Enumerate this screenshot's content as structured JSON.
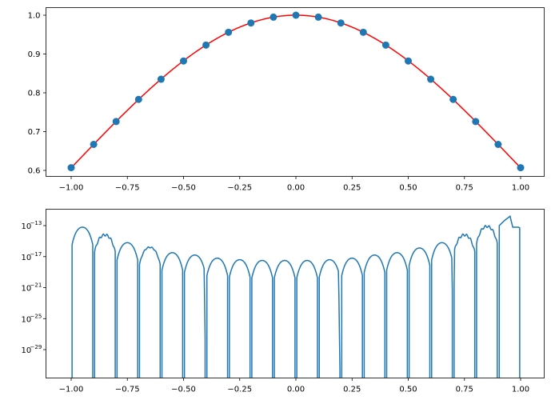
{
  "chart_data": [
    {
      "type": "scatter",
      "xlim": [
        -1.1,
        1.1
      ],
      "ylim": [
        0.5856,
        1.0206
      ],
      "x_ticks": [
        "−1.00",
        "−0.75",
        "−0.50",
        "−0.25",
        "0.00",
        "0.25",
        "0.50",
        "0.75",
        "1.00"
      ],
      "x_tick_values": [
        -1,
        -0.75,
        -0.5,
        -0.25,
        0,
        0.25,
        0.5,
        0.75,
        1
      ],
      "y_ticks": [
        "0.6",
        "0.7",
        "0.8",
        "0.9",
        "1.0"
      ],
      "y_tick_values": [
        0.6,
        0.7,
        0.8,
        0.9,
        1.0
      ],
      "points_x": [
        -1,
        -0.9,
        -0.8,
        -0.7,
        -0.6,
        -0.5,
        -0.4,
        -0.3,
        -0.2,
        -0.1,
        0,
        0.1,
        0.2,
        0.3,
        0.4,
        0.5,
        0.6,
        0.7,
        0.8,
        0.9,
        1
      ],
      "points_y": [
        0.607,
        0.667,
        0.726,
        0.783,
        0.835,
        0.882,
        0.923,
        0.956,
        0.98,
        0.995,
        1.0,
        0.995,
        0.98,
        0.956,
        0.923,
        0.882,
        0.835,
        0.783,
        0.726,
        0.667,
        0.607
      ],
      "line": "smooth curve through points",
      "colors": {
        "points": "#1f77b4",
        "line": "#ff0000"
      }
    },
    {
      "type": "line",
      "yscale": "log",
      "xlim": [
        -1.1,
        1.1
      ],
      "ylim": [
        1.2e-11,
        1.6e-33
      ],
      "x_ticks": [
        "−1.00",
        "−0.75",
        "−0.50",
        "−0.25",
        "0.00",
        "0.25",
        "0.50",
        "0.75",
        "1.00"
      ],
      "x_tick_values": [
        -1,
        -0.75,
        -0.5,
        -0.25,
        0,
        0.25,
        0.5,
        0.75,
        1
      ],
      "y_ticks": [
        {
          "base": "10",
          "exp": "−13"
        },
        {
          "base": "10",
          "exp": "−17"
        },
        {
          "base": "10",
          "exp": "−21"
        },
        {
          "base": "10",
          "exp": "−25"
        },
        {
          "base": "10",
          "exp": "−29"
        }
      ],
      "y_tick_values": [
        1e-13,
        1e-17,
        1e-21,
        1e-25,
        1e-29
      ],
      "segment_starts": [
        -1,
        -0.9,
        -0.8,
        -0.7,
        -0.6,
        -0.5,
        -0.4,
        -0.3,
        -0.2,
        -0.1,
        0,
        0.1,
        0.2,
        0.3,
        0.4,
        0.5,
        0.6,
        0.7,
        0.8
      ],
      "segment_peaks": [
        6.3e-14,
        6.3e-15,
        6.3e-16,
        1.6e-16,
        3.2e-17,
        1.6e-17,
        6.3e-18,
        4e-18,
        3.2e-18,
        3.2e-18,
        3.2e-18,
        4e-18,
        6.3e-18,
        1.6e-17,
        3.2e-17,
        1.3e-16,
        6.3e-16,
        6.3e-15,
        7.9e-14
      ],
      "last_segment_points": [
        [
          0.905,
          1e-13
        ],
        [
          0.93,
          5e-13
        ],
        [
          0.953,
          1.6e-12
        ],
        [
          0.965,
          6.3e-14
        ],
        [
          0.99,
          6.3e-14
        ]
      ],
      "dips": [
        {
          "x": -0.402,
          "y": 2.5e-32
        },
        {
          "x": 0.196,
          "y": 2.5e-32
        },
        {
          "x": 0.7,
          "y": 8e-30
        }
      ],
      "color": "#1f77b4"
    }
  ]
}
